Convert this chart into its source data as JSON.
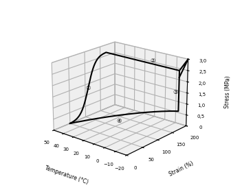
{
  "xlabel": "Temperature (°C)",
  "ylabel": "Strain (%)",
  "zlabel": "Stress (MPa)",
  "temp_range": [
    -20,
    50
  ],
  "strain_range": [
    0,
    200
  ],
  "stress_range": [
    0,
    3.0
  ],
  "temp_ticks": [
    -20,
    -10,
    0,
    10,
    20,
    30,
    40,
    50
  ],
  "strain_ticks": [
    0,
    50,
    100,
    150,
    200
  ],
  "stress_ticks": [
    0,
    0.5,
    1.0,
    1.5,
    2.0,
    2.5,
    3.0
  ],
  "stress_tick_labels": [
    "0",
    "0,5",
    "1,0",
    "1,5",
    "2,0",
    "2,5",
    "3,0"
  ],
  "background_color": "#ffffff",
  "line_color": "#000000",
  "label_positions": {
    "1": {
      "temp": 50,
      "strain": 110,
      "stress": 1.3
    },
    "2": {
      "temp": 5,
      "strain": 172,
      "stress": 2.78
    },
    "3": {
      "temp": -20,
      "strain": 158,
      "stress": 1.75
    },
    "4": {
      "temp": 18,
      "strain": 105,
      "stress": 0.25
    }
  },
  "circled_numbers": [
    "①",
    "②",
    "③",
    "④"
  ]
}
